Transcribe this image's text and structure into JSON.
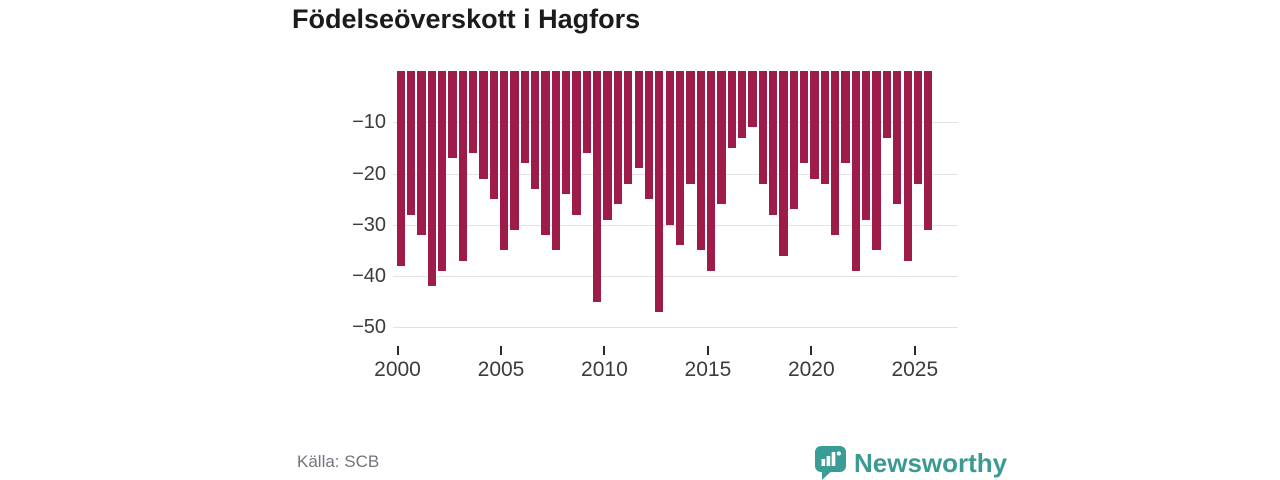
{
  "title": "Födelseöverskott i Hagfors",
  "source": "Källa: SCB",
  "branding": {
    "logo_text": "Newsworthy",
    "logo_color": "#3a9d95"
  },
  "chart_data": {
    "type": "bar",
    "title": "Födelseöverskott i Hagfors",
    "xlabel": "",
    "ylabel": "",
    "ylim": [
      -50,
      0
    ],
    "yticks": [
      -10,
      -20,
      -30,
      -40,
      -50
    ],
    "xticks": [
      "2000",
      "2005",
      "2010",
      "2015",
      "2020",
      "2025"
    ],
    "grid": "horizontal",
    "legend": "none",
    "bar_color": "#9e1c49",
    "periods": [
      "2000-H1",
      "2000-H2",
      "2001-H1",
      "2001-H2",
      "2002-H1",
      "2002-H2",
      "2003-H1",
      "2003-H2",
      "2004-H1",
      "2004-H2",
      "2005-H1",
      "2005-H2",
      "2006-H1",
      "2006-H2",
      "2007-H1",
      "2007-H2",
      "2008-H1",
      "2008-H2",
      "2009-H1",
      "2009-H2",
      "2010-H1",
      "2010-H2",
      "2011-H1",
      "2011-H2",
      "2012-H1",
      "2012-H2",
      "2013-H1",
      "2013-H2",
      "2014-H1",
      "2014-H2",
      "2015-H1",
      "2015-H2",
      "2016-H1",
      "2016-H2",
      "2017-H1",
      "2017-H2",
      "2018-H1",
      "2018-H2",
      "2019-H1",
      "2019-H2",
      "2020-H1",
      "2020-H2",
      "2021-H1",
      "2021-H2",
      "2022-H1",
      "2022-H2",
      "2023-H1",
      "2023-H2",
      "2024-H1",
      "2024-H2",
      "2025-H1",
      "2025-H2"
    ],
    "values": [
      -38,
      -28,
      -32,
      -42,
      -39,
      -17,
      -37,
      -16,
      -21,
      -25,
      -35,
      -31,
      -18,
      -23,
      -32,
      -35,
      -24,
      -28,
      -16,
      -45,
      -29,
      -26,
      -22,
      -19,
      -25,
      -47,
      -30,
      -34,
      -22,
      -35,
      -39,
      -26,
      -15,
      -13,
      -11,
      -22,
      -28,
      -36,
      -27,
      -18,
      -21,
      -22,
      -32,
      -18,
      -39,
      -29,
      -35,
      -13,
      -26,
      -37,
      -22,
      -31
    ]
  }
}
